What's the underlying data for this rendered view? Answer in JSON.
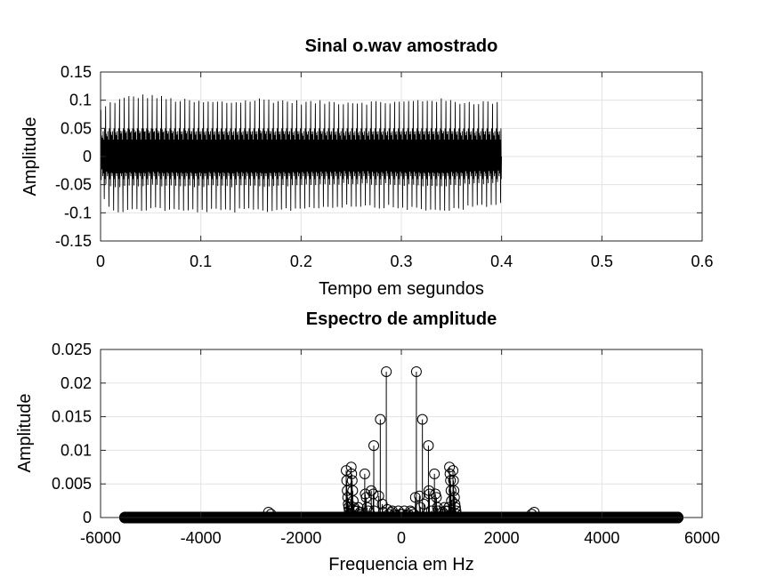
{
  "chart_data": [
    {
      "type": "line",
      "title": "Sinal o.wav amostrado",
      "xlabel": "Tempo em segundos",
      "ylabel": "Amplitude",
      "xlim": [
        0,
        0.6
      ],
      "ylim": [
        -0.15,
        0.15
      ],
      "xticks": [
        0,
        0.1,
        0.2,
        0.3,
        0.4,
        0.5,
        0.6
      ],
      "xtick_labels": [
        "0",
        "0.1",
        "0.2",
        "0.3",
        "0.4",
        "0.5",
        "0.6"
      ],
      "yticks": [
        -0.15,
        -0.1,
        -0.05,
        0,
        0.05,
        0.1,
        0.15
      ],
      "ytick_labels": [
        "-0.15",
        "-0.1",
        "-0.05",
        "0",
        "0.05",
        "0.1",
        "0.15"
      ],
      "grid": true,
      "series": [
        {
          "color": "#000000",
          "signal_span": [
            0,
            0.4
          ],
          "pulse_period": 0.00465,
          "peak_max": 0.11,
          "peak_min": -0.105,
          "envelope": {
            "t": [
              0.0,
              0.01,
              0.02,
              0.03,
              0.05,
              0.07,
              0.1,
              0.13,
              0.16,
              0.2,
              0.25,
              0.3,
              0.33,
              0.36,
              0.39,
              0.4
            ],
            "max": [
              0.085,
              0.1,
              0.105,
              0.11,
              0.112,
              0.105,
              0.1,
              0.1,
              0.105,
              0.1,
              0.1,
              0.1,
              0.105,
              0.1,
              0.1,
              0.095
            ],
            "min": [
              -0.08,
              -0.1,
              -0.1,
              -0.1,
              -0.095,
              -0.1,
              -0.1,
              -0.1,
              -0.1,
              -0.095,
              -0.09,
              -0.095,
              -0.1,
              -0.095,
              -0.09,
              -0.085
            ]
          }
        }
      ]
    },
    {
      "type": "scatter",
      "title": "Espectro de amplitude",
      "xlabel": "Frequencia em Hz",
      "ylabel": "Amplitude",
      "xlim": [
        -6000,
        6000
      ],
      "ylim": [
        0,
        0.025
      ],
      "xticks": [
        -6000,
        -4000,
        -2000,
        0,
        2000,
        4000,
        6000
      ],
      "xtick_labels": [
        "-6000",
        "-4000",
        "-2000",
        "0",
        "2000",
        "4000",
        "6000"
      ],
      "yticks": [
        0,
        0.005,
        0.01,
        0.015,
        0.02,
        0.025
      ],
      "ytick_labels": [
        "0",
        "0.005",
        "0.01",
        "0.015",
        "0.02",
        "0.025"
      ],
      "grid": true,
      "stem": true,
      "series": [
        {
          "color": "#000000",
          "baseline_range": [
            -5512,
            5512
          ],
          "x": [
            -1100,
            -1090,
            -1080,
            -1070,
            -1060,
            -1050,
            -1040,
            -1030,
            -1000,
            -990,
            -980,
            -970,
            -960,
            -945,
            -930,
            -880,
            -860,
            -840,
            -820,
            -730,
            -720,
            -700,
            -680,
            -660,
            -600,
            -560,
            -550,
            -540,
            -450,
            -420,
            -380,
            -360,
            -300,
            -280,
            -250,
            -200,
            -180,
            -140,
            -100,
            -60,
            -20,
            20,
            60,
            100,
            140,
            180,
            200,
            250,
            280,
            300,
            360,
            380,
            420,
            450,
            540,
            550,
            560,
            600,
            660,
            680,
            700,
            720,
            730,
            820,
            840,
            860,
            880,
            930,
            945,
            960,
            970,
            980,
            990,
            1000,
            1030,
            1040,
            1050,
            1060,
            1070,
            1080,
            1090,
            1100,
            -2650,
            -2600,
            2600,
            2650
          ],
          "y": [
            0.007,
            0.0055,
            0.004,
            0.003,
            0.002,
            0.0015,
            0.001,
            0.0005,
            0.0075,
            0.0065,
            0.0055,
            0.004,
            0.0025,
            0.0015,
            0.001,
            0.001,
            0.0015,
            0.0005,
            0.0008,
            0.0065,
            0.0035,
            0.003,
            0.0015,
            0.001,
            0.004,
            0.0035,
            0.0107,
            0.001,
            0.0032,
            0.0146,
            0.002,
            0.0008,
            0.0217,
            0.0012,
            0.0005,
            0.0008,
            0.001,
            0.0005,
            0.0003,
            0.001,
            0.0005,
            0.0005,
            0.001,
            0.0003,
            0.0005,
            0.001,
            0.0008,
            0.0005,
            0.003,
            0.0217,
            0.0032,
            0.0015,
            0.0146,
            0.002,
            0.0107,
            0.004,
            0.0035,
            0.001,
            0.0065,
            0.0035,
            0.003,
            0.0015,
            0.001,
            0.0008,
            0.0005,
            0.0015,
            0.001,
            0.001,
            0.0015,
            0.0075,
            0.0065,
            0.0055,
            0.004,
            0.0025,
            0.007,
            0.0055,
            0.004,
            0.003,
            0.002,
            0.0015,
            0.001,
            0.0005,
            0.0008,
            0.0005,
            0.0005,
            0.0008
          ]
        }
      ]
    }
  ]
}
